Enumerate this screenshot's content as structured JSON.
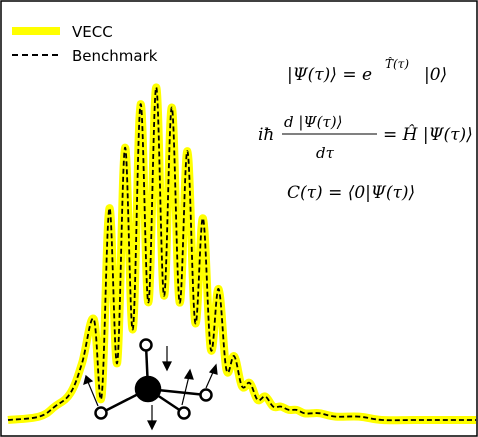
{
  "chart_data": {
    "type": "line",
    "title": "",
    "xlabel": "",
    "ylabel": "",
    "grid": false,
    "legend": {
      "placement": "top-left",
      "entries": [
        {
          "label": "VECC",
          "color": "#ffff00",
          "style": "thick-solid"
        },
        {
          "label": "Benchmark",
          "color": "#000000",
          "style": "dashed"
        }
      ]
    },
    "xlim": [
      0,
      600
    ],
    "ylim": [
      0,
      1.0
    ],
    "series": [
      {
        "name": "VECC",
        "x": [
          0,
          40,
          60,
          80,
          95,
          110,
          120,
          130,
          140,
          150,
          160,
          170,
          180,
          190,
          200,
          210,
          220,
          230,
          240,
          250,
          260,
          270,
          280,
          290,
          300,
          310,
          320,
          330,
          340,
          350,
          360,
          370,
          380,
          390,
          400,
          420,
          450,
          480,
          520,
          560,
          600
        ],
        "y": [
          0.0,
          0.01,
          0.04,
          0.08,
          0.17,
          0.3,
          0.07,
          0.63,
          0.17,
          0.81,
          0.27,
          0.94,
          0.35,
          0.99,
          0.37,
          0.93,
          0.35,
          0.8,
          0.29,
          0.6,
          0.21,
          0.39,
          0.15,
          0.19,
          0.1,
          0.11,
          0.06,
          0.07,
          0.04,
          0.04,
          0.03,
          0.03,
          0.02,
          0.02,
          0.02,
          0.01,
          0.01,
          0.0,
          0.0,
          0.0,
          0.0
        ]
      },
      {
        "name": "Benchmark",
        "x": [
          0,
          40,
          60,
          80,
          95,
          110,
          120,
          130,
          140,
          150,
          160,
          170,
          180,
          190,
          200,
          210,
          220,
          230,
          240,
          250,
          260,
          270,
          280,
          290,
          300,
          310,
          320,
          330,
          340,
          350,
          360,
          370,
          380,
          390,
          400,
          420,
          450,
          480,
          520,
          560,
          600
        ],
        "y": [
          0.0,
          0.01,
          0.04,
          0.08,
          0.17,
          0.3,
          0.07,
          0.63,
          0.17,
          0.81,
          0.27,
          0.94,
          0.35,
          0.99,
          0.37,
          0.93,
          0.35,
          0.8,
          0.29,
          0.6,
          0.21,
          0.39,
          0.15,
          0.19,
          0.1,
          0.11,
          0.06,
          0.07,
          0.04,
          0.04,
          0.03,
          0.03,
          0.02,
          0.02,
          0.02,
          0.01,
          0.01,
          0.0,
          0.0,
          0.0,
          0.0
        ]
      }
    ],
    "annotations": [
      "|Ψ(τ)⟩ = e^{T̂(τ)}|0⟩",
      "iħ d|Ψ(τ)⟩ / dτ = Ĥ |Ψ(τ)⟩",
      "C(τ) = ⟨0|Ψ(τ)⟩"
    ]
  },
  "equations": {
    "eq1_lhs": "|Ψ(τ)⟩ = e",
    "eq1_sup": "T̂(τ)",
    "eq1_rhs": "|0⟩",
    "eq2_pre": "iħ",
    "eq2_num": "d |Ψ(τ)⟩",
    "eq2_den": "dτ",
    "eq2_rhs": "= Ĥ |Ψ(τ)⟩",
    "eq3": "C(τ) = ⟨0|Ψ(τ)⟩"
  },
  "colors": {
    "vecc": "#ffff00",
    "benchmark": "#000000",
    "frame": "#000000"
  }
}
